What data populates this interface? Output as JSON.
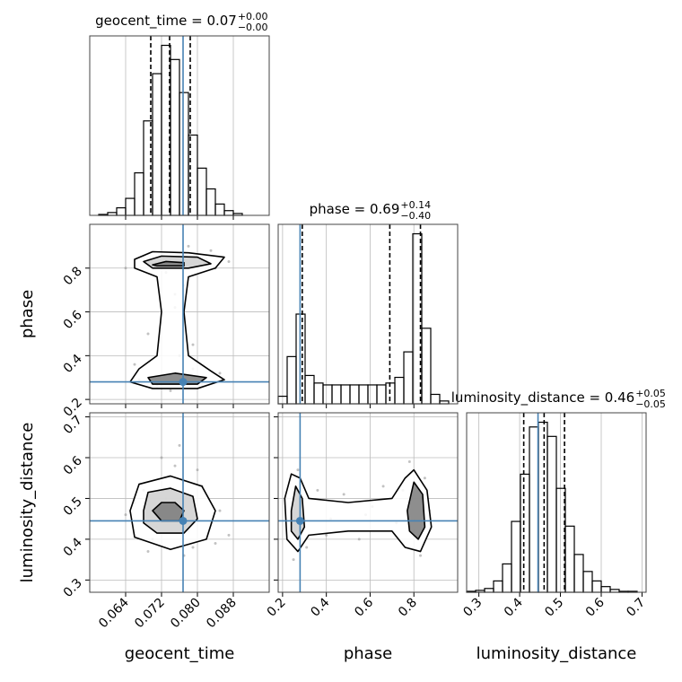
{
  "chart_data": {
    "type": "corner",
    "grid": true,
    "truth_color": "#4682b4",
    "sample_color": "#9a9a9a",
    "contour_fills": [
      "#ffffff",
      "#cfcfcf",
      "#7a7a7a"
    ],
    "hist_ylim": [
      0,
      190
    ],
    "parameters": [
      {
        "name": "geocent_time",
        "title": {
          "main": "geocent_time = 0.07",
          "plus": "+0.00",
          "minus": "−0.00"
        },
        "lim": [
          0.056,
          0.096
        ],
        "ticks": [
          0.064,
          0.072,
          {
            "value": 0.08,
            "label": "0.080"
          },
          0.088
        ],
        "truth": 0.0768,
        "quantiles": [
          0.0696,
          0.0738,
          0.0784
        ],
        "bins": [
          0.056,
          0.058,
          0.06,
          0.062,
          0.064,
          0.066,
          0.068,
          0.07,
          0.072,
          0.074,
          0.076,
          0.078,
          0.08,
          0.082,
          0.084,
          0.086,
          0.088,
          0.09,
          0.092,
          0.094,
          0.096
        ],
        "counts": [
          0,
          1,
          3,
          8,
          18,
          45,
          100,
          150,
          180,
          165,
          130,
          85,
          50,
          28,
          12,
          5,
          2,
          0,
          0,
          0
        ]
      },
      {
        "name": "phase",
        "title": {
          "main": "phase = 0.69",
          "plus": "+0.14",
          "minus": "−0.40"
        },
        "lim": [
          0.18,
          1.0
        ],
        "ticks": [
          0.2,
          0.4,
          0.6,
          0.8
        ],
        "truth": 0.28,
        "quantiles": [
          0.29,
          0.69,
          0.83
        ],
        "bins": [
          0.18,
          0.221,
          0.262,
          0.303,
          0.344,
          0.385,
          0.426,
          0.467,
          0.508,
          0.549,
          0.59,
          0.631,
          0.672,
          0.713,
          0.754,
          0.795,
          0.836,
          0.877,
          0.918,
          0.959,
          1.0
        ],
        "counts": [
          8,
          50,
          95,
          30,
          22,
          20,
          20,
          20,
          20,
          20,
          20,
          20,
          22,
          28,
          55,
          180,
          80,
          10,
          3,
          0
        ]
      },
      {
        "name": "luminosity_distance",
        "title": {
          "main": "luminosity_distance = 0.46",
          "plus": "+0.05",
          "minus": "−0.05"
        },
        "lim": [
          0.27,
          0.71
        ],
        "ticks": [
          0.3,
          0.4,
          0.5,
          0.6,
          0.7
        ],
        "truth": 0.445,
        "quantiles": [
          0.41,
          0.46,
          0.51
        ],
        "bins": [
          0.27,
          0.292,
          0.314,
          0.336,
          0.358,
          0.38,
          0.402,
          0.424,
          0.446,
          0.468,
          0.49,
          0.512,
          0.534,
          0.556,
          0.578,
          0.6,
          0.622,
          0.644,
          0.666,
          0.688,
          0.71
        ],
        "counts": [
          1,
          2,
          4,
          12,
          30,
          75,
          125,
          175,
          180,
          165,
          110,
          70,
          40,
          22,
          12,
          6,
          3,
          1,
          1,
          0
        ]
      }
    ],
    "pairs": [
      {
        "samples_x": [
          0.068,
          0.083,
          0.075,
          0.064,
          0.087,
          0.079,
          0.072,
          0.07,
          0.081,
          0.077,
          0.066,
          0.085,
          0.074,
          0.078,
          0.069,
          0.076,
          0.073,
          0.08,
          0.071,
          0.084,
          0.067,
          0.075,
          0.079,
          0.082
        ],
        "samples_y": [
          0.85,
          0.88,
          0.62,
          0.8,
          0.83,
          0.45,
          0.55,
          0.3,
          0.27,
          0.72,
          0.36,
          0.32,
          0.24,
          0.9,
          0.5,
          0.4,
          0.78,
          0.86,
          0.26,
          0.8,
          0.29,
          0.68,
          0.34,
          0.84
        ],
        "contours": [
          {
            "x": [
              0.066,
              0.07,
              0.078,
              0.086,
              0.084,
              0.078,
              0.077,
              0.078,
              0.083,
              0.086,
              0.08,
              0.07,
              0.065,
              0.067,
              0.071,
              0.072,
              0.071,
              0.066
            ],
            "y": [
              0.84,
              0.875,
              0.87,
              0.85,
              0.8,
              0.76,
              0.6,
              0.4,
              0.33,
              0.29,
              0.25,
              0.25,
              0.28,
              0.34,
              0.4,
              0.6,
              0.76,
              0.8
            ]
          },
          {
            "x": [
              0.068,
              0.072,
              0.08,
              0.083,
              0.078,
              0.07
            ],
            "y": [
              0.83,
              0.855,
              0.85,
              0.82,
              0.8,
              0.8
            ]
          },
          {
            "x": [
              0.069,
              0.075,
              0.082,
              0.08,
              0.07
            ],
            "y": [
              0.3,
              0.32,
              0.3,
              0.27,
              0.27
            ]
          },
          {
            "x": [
              0.07,
              0.073,
              0.077,
              0.077,
              0.071
            ],
            "y": [
              0.815,
              0.83,
              0.825,
              0.81,
              0.81
            ]
          }
        ]
      },
      {
        "samples_x": [
          0.068,
          0.083,
          0.075,
          0.064,
          0.087,
          0.079,
          0.072,
          0.07,
          0.081,
          0.077,
          0.066,
          0.085,
          0.074,
          0.078,
          0.069,
          0.076,
          0.073,
          0.08,
          0.071,
          0.084
        ],
        "samples_y": [
          0.52,
          0.44,
          0.58,
          0.46,
          0.41,
          0.38,
          0.6,
          0.4,
          0.53,
          0.36,
          0.49,
          0.47,
          0.55,
          0.42,
          0.37,
          0.63,
          0.5,
          0.57,
          0.43,
          0.39
        ],
        "contours": [
          {
            "x": [
              0.065,
              0.067,
              0.074,
              0.081,
              0.084,
              0.082,
              0.074,
              0.066
            ],
            "y": [
              0.47,
              0.535,
              0.555,
              0.53,
              0.47,
              0.4,
              0.375,
              0.405
            ]
          },
          {
            "x": [
              0.068,
              0.069,
              0.074,
              0.079,
              0.08,
              0.077,
              0.071,
              0.068
            ],
            "y": [
              0.47,
              0.515,
              0.525,
              0.505,
              0.45,
              0.415,
              0.415,
              0.44
            ]
          },
          {
            "x": [
              0.07,
              0.072,
              0.075,
              0.077,
              0.076,
              0.072
            ],
            "y": [
              0.47,
              0.49,
              0.49,
              0.47,
              0.445,
              0.445
            ]
          }
        ]
      },
      {
        "samples_x": [
          0.22,
          0.27,
          0.31,
          0.36,
          0.42,
          0.48,
          0.55,
          0.61,
          0.66,
          0.72,
          0.78,
          0.83,
          0.87,
          0.25,
          0.4,
          0.58,
          0.8,
          0.85,
          0.29,
          0.75
        ],
        "samples_y": [
          0.5,
          0.57,
          0.38,
          0.52,
          0.45,
          0.51,
          0.4,
          0.48,
          0.53,
          0.44,
          0.59,
          0.36,
          0.47,
          0.35,
          0.41,
          0.46,
          0.42,
          0.55,
          0.45,
          0.52
        ],
        "contours": [
          {
            "x": [
              0.21,
              0.24,
              0.28,
              0.32,
              0.5,
              0.7,
              0.76,
              0.8,
              0.86,
              0.88,
              0.83,
              0.76,
              0.7,
              0.5,
              0.32,
              0.27,
              0.22
            ],
            "y": [
              0.5,
              0.56,
              0.55,
              0.5,
              0.49,
              0.5,
              0.55,
              0.57,
              0.52,
              0.43,
              0.37,
              0.38,
              0.42,
              0.42,
              0.41,
              0.37,
              0.4
            ]
          },
          {
            "x": [
              0.24,
              0.26,
              0.29,
              0.3,
              0.27,
              0.24
            ],
            "y": [
              0.47,
              0.53,
              0.5,
              0.43,
              0.4,
              0.42
            ]
          },
          {
            "x": [
              0.77,
              0.8,
              0.84,
              0.85,
              0.82,
              0.78
            ],
            "y": [
              0.47,
              0.54,
              0.51,
              0.43,
              0.4,
              0.42
            ]
          }
        ]
      }
    ]
  }
}
